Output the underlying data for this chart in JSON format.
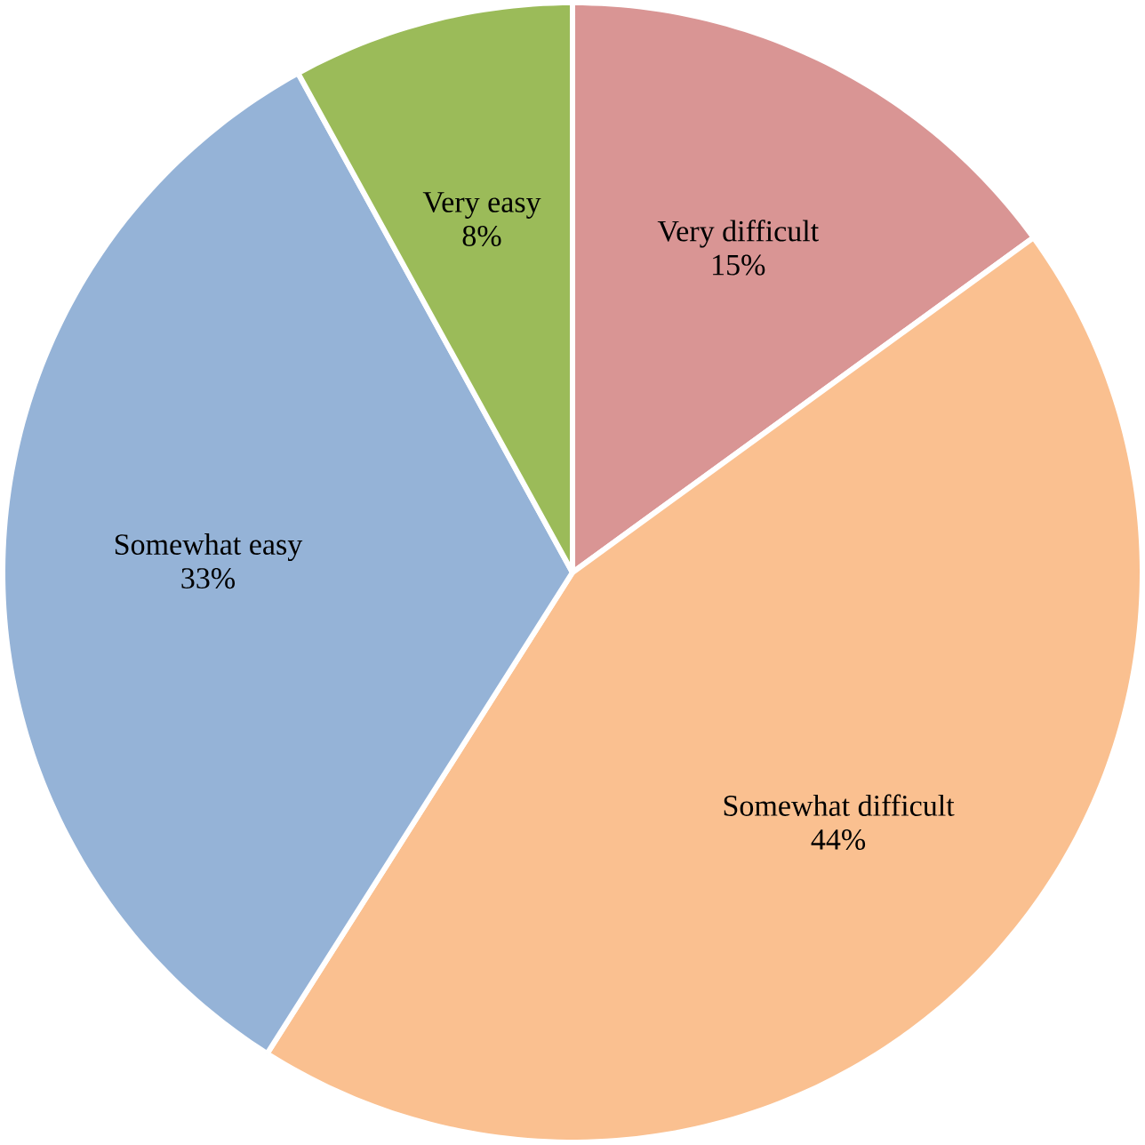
{
  "chart_data": {
    "type": "pie",
    "categories": [
      "Very difficult",
      "Somewhat difficult",
      "Somewhat easy",
      "Very easy"
    ],
    "values": [
      15,
      44,
      33,
      8
    ],
    "value_labels": [
      "15%",
      "44%",
      "33%",
      "8%"
    ],
    "colors": [
      "#d99594",
      "#fac090",
      "#95b3d7",
      "#9bbb59"
    ]
  }
}
